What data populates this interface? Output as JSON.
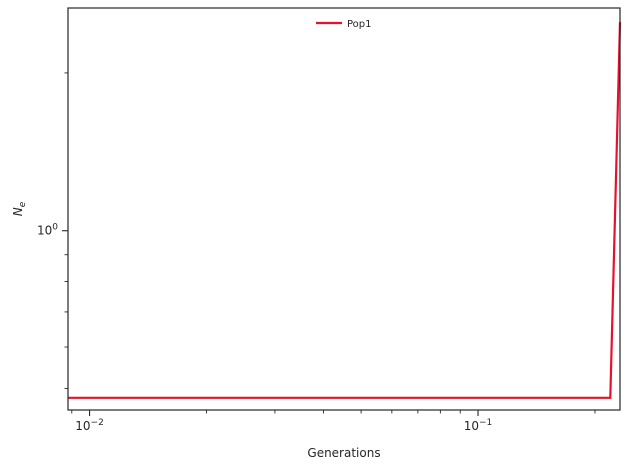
{
  "chart_data": {
    "type": "line",
    "xscale": "log",
    "yscale": "log",
    "xlabel": "Generations",
    "ylabel_base": "N",
    "ylabel_sub": "e",
    "xlim": [
      0.0088,
      0.232
    ],
    "ylim": [
      0.455,
      2.66
    ],
    "x_ticks": [
      {
        "value": 0.01,
        "base": "10",
        "exp": "−2"
      },
      {
        "value": 0.1,
        "base": "10",
        "exp": "−1"
      }
    ],
    "y_ticks": [
      {
        "value": 1,
        "base": "10",
        "exp": "0"
      }
    ],
    "grid": false,
    "legend_position": "top-center",
    "series": [
      {
        "name": "Pop1",
        "color": "#e8112d",
        "x": [
          0.0088,
          0.219,
          0.232
        ],
        "y": [
          0.48,
          0.48,
          2.5
        ]
      }
    ]
  }
}
